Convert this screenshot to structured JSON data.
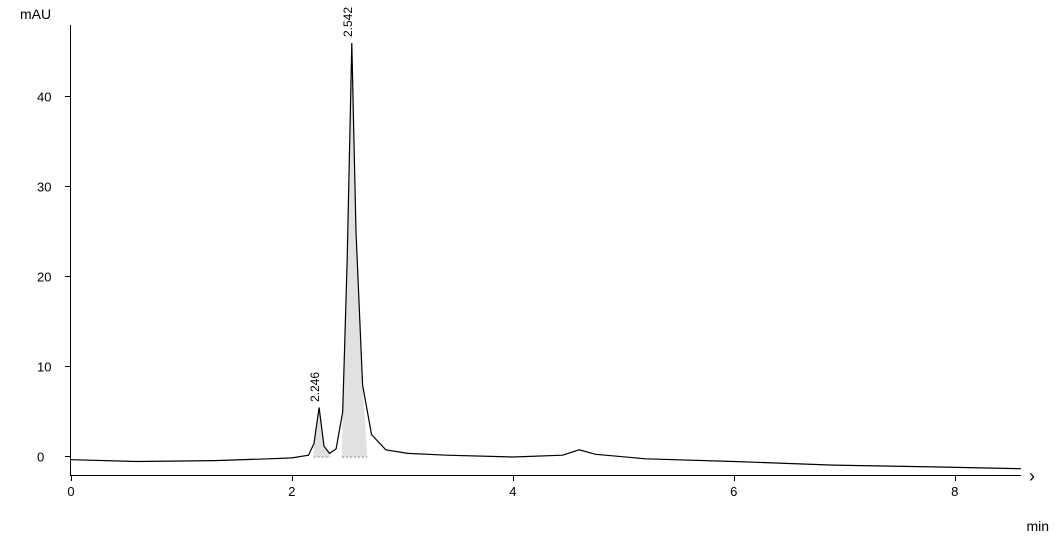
{
  "chromatogram": {
    "type": "line",
    "ylabel": "mAU",
    "xlabel": "min",
    "xlim": [
      0,
      8.6
    ],
    "ylim": [
      -2,
      48
    ],
    "xticks": [
      0,
      2,
      4,
      6,
      8
    ],
    "yticks": [
      0,
      10,
      20,
      30,
      40
    ],
    "axis_color": "#000000",
    "background_color": "#ffffff",
    "line_color": "#000000",
    "line_width": 1.2,
    "fill_color": "#dcdcdc",
    "fill_opacity": 0.85,
    "label_fontsize": 13,
    "peak_label_fontsize": 12,
    "peaks": [
      {
        "rt": 2.246,
        "height": 5.5,
        "width_min": 0.1,
        "label": "2.246"
      },
      {
        "rt": 2.542,
        "height": 46.0,
        "width_min": 0.18,
        "label": "2.542"
      }
    ],
    "baseline_points": [
      {
        "x": 0.0,
        "y": -0.3
      },
      {
        "x": 0.6,
        "y": -0.5
      },
      {
        "x": 1.3,
        "y": -0.4
      },
      {
        "x": 1.8,
        "y": -0.2
      },
      {
        "x": 2.0,
        "y": -0.1
      },
      {
        "x": 2.15,
        "y": 0.2
      },
      {
        "x": 2.2,
        "y": 1.5
      },
      {
        "x": 2.246,
        "y": 5.5
      },
      {
        "x": 2.29,
        "y": 1.2
      },
      {
        "x": 2.34,
        "y": 0.4
      },
      {
        "x": 2.4,
        "y": 0.9
      },
      {
        "x": 2.46,
        "y": 5.0
      },
      {
        "x": 2.5,
        "y": 22.0
      },
      {
        "x": 2.542,
        "y": 46.0
      },
      {
        "x": 2.58,
        "y": 25.0
      },
      {
        "x": 2.64,
        "y": 8.0
      },
      {
        "x": 2.72,
        "y": 2.5
      },
      {
        "x": 2.85,
        "y": 0.8
      },
      {
        "x": 3.05,
        "y": 0.4
      },
      {
        "x": 3.4,
        "y": 0.2
      },
      {
        "x": 4.0,
        "y": 0.0
      },
      {
        "x": 4.45,
        "y": 0.2
      },
      {
        "x": 4.6,
        "y": 0.8
      },
      {
        "x": 4.75,
        "y": 0.3
      },
      {
        "x": 5.2,
        "y": -0.2
      },
      {
        "x": 6.0,
        "y": -0.5
      },
      {
        "x": 6.9,
        "y": -0.9
      },
      {
        "x": 7.8,
        "y": -1.1
      },
      {
        "x": 8.6,
        "y": -1.3
      }
    ]
  }
}
